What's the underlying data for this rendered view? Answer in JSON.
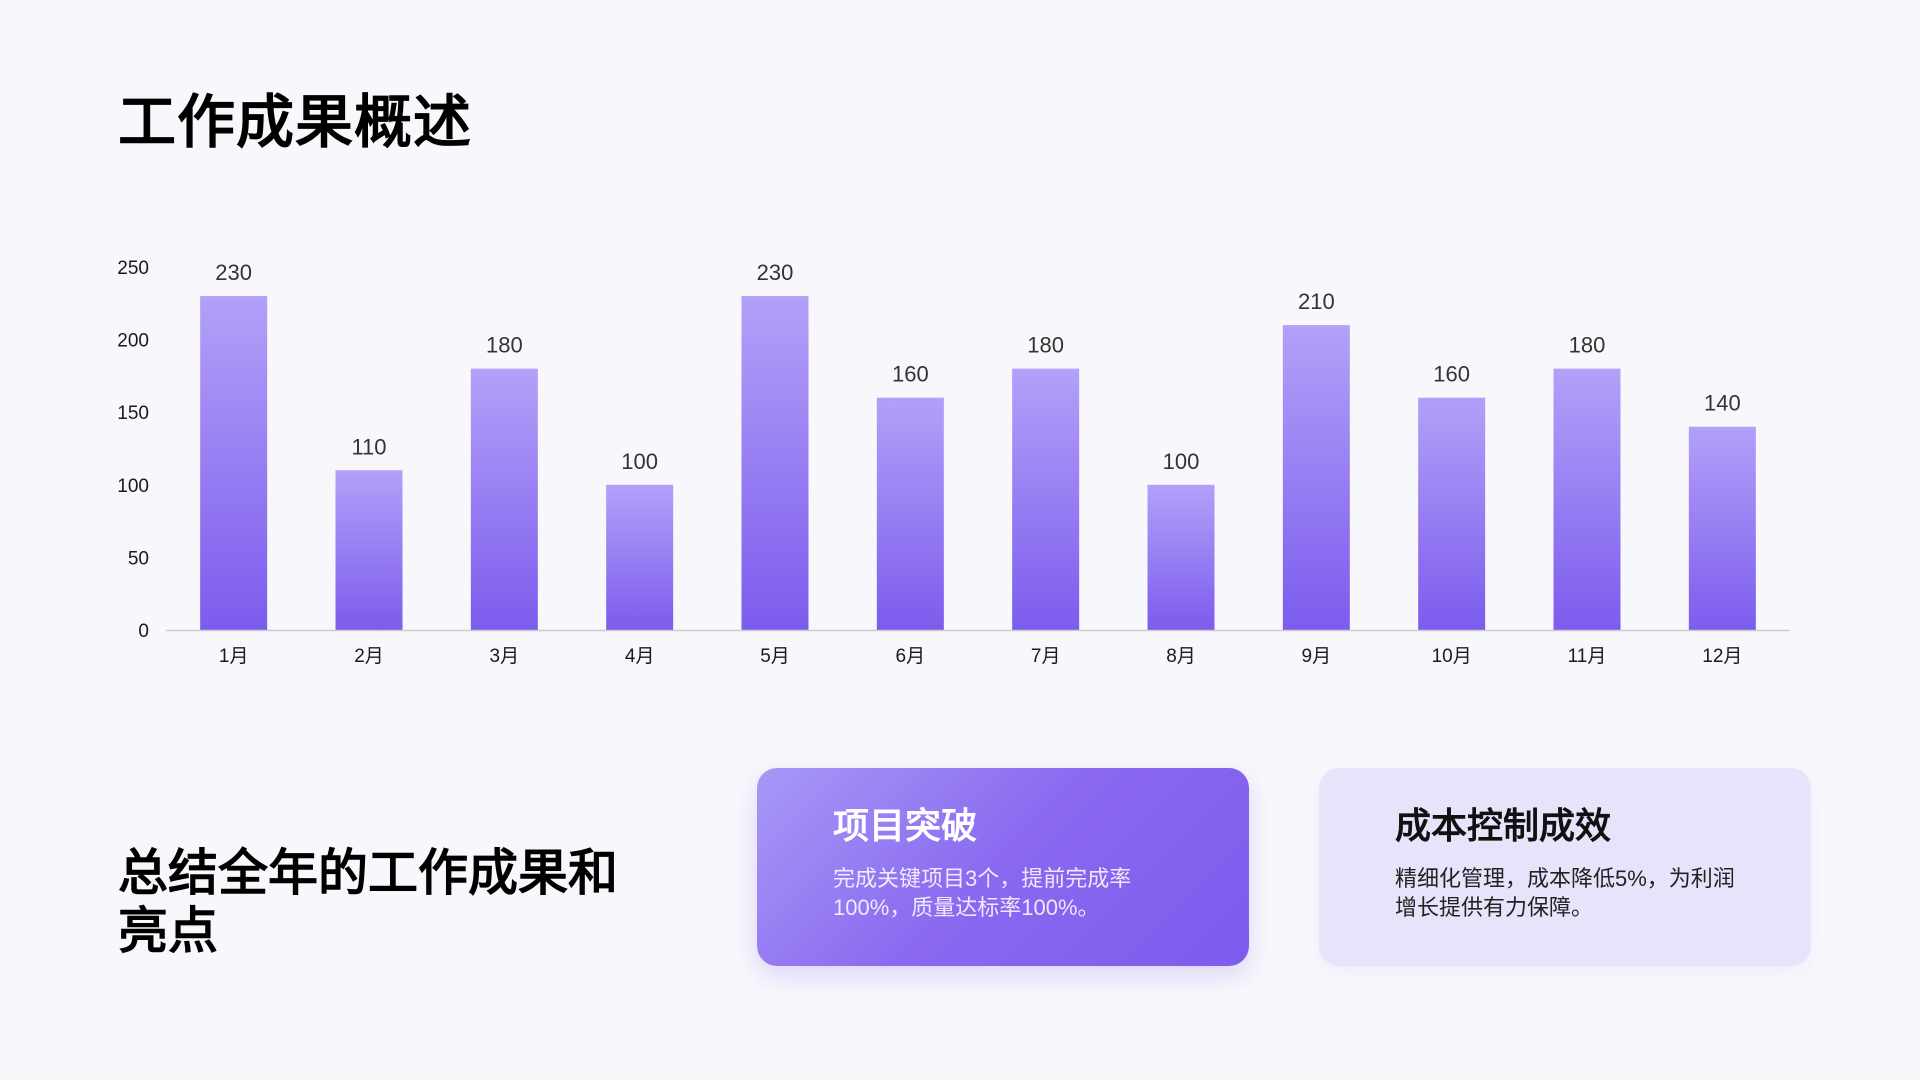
{
  "page": {
    "title": "工作成果概述",
    "summary": "总结全年的工作成果和亮点"
  },
  "cards": [
    {
      "title": "项目突破",
      "body": "完成关键项目3个，提前完成率100%，质量达标率100%。"
    },
    {
      "title": "成本控制成效",
      "body": "精细化管理，成本降低5%，为利润增长提供有力保障。"
    }
  ],
  "colors": {
    "bar_top": "#b3a0f8",
    "bar_bottom": "#7c5ced",
    "axis": "#cccccc",
    "tick_text": "#1a1a1a",
    "label_text": "#333333"
  },
  "chart_data": {
    "type": "bar",
    "categories": [
      "1月",
      "2月",
      "3月",
      "4月",
      "5月",
      "6月",
      "7月",
      "8月",
      "9月",
      "10月",
      "11月",
      "12月"
    ],
    "values": [
      230,
      110,
      180,
      100,
      230,
      160,
      180,
      100,
      210,
      160,
      180,
      140
    ],
    "yticks": [
      0,
      50,
      100,
      150,
      200,
      250
    ],
    "ylim": [
      0,
      250
    ],
    "grid": false,
    "legend": false,
    "data_labels": true
  }
}
